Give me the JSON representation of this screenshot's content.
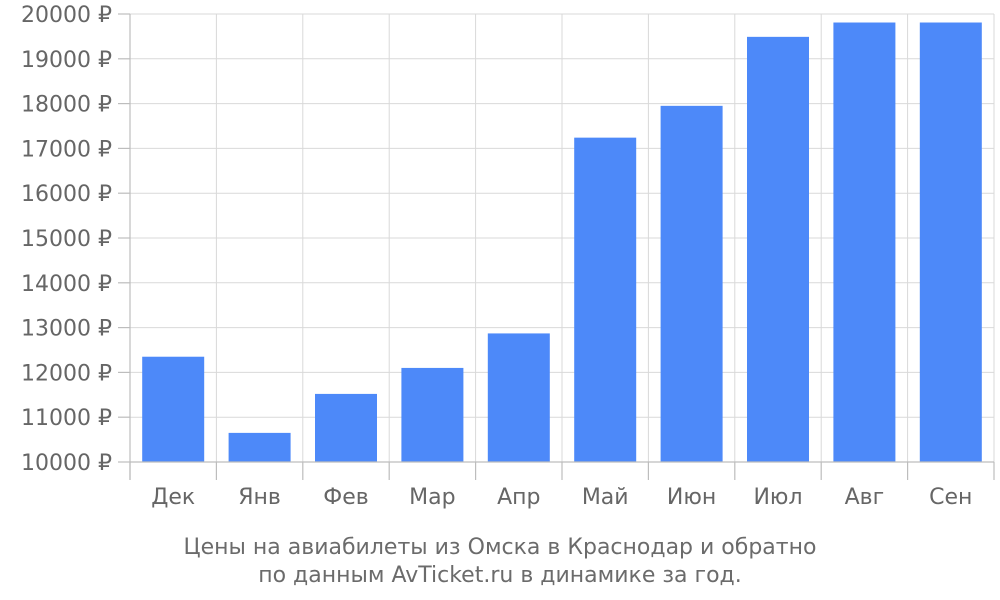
{
  "chart_data": {
    "type": "bar",
    "categories": [
      "Дек",
      "Янв",
      "Фев",
      "Мар",
      "Апр",
      "Май",
      "Июн",
      "Июл",
      "Авг",
      "Сен"
    ],
    "values": [
      12350,
      10650,
      11520,
      12100,
      12870,
      17240,
      17950,
      19490,
      19810,
      19810
    ],
    "ylim": [
      10000,
      20000
    ],
    "yticks": [
      10000,
      11000,
      12000,
      13000,
      14000,
      15000,
      16000,
      17000,
      18000,
      19000,
      20000
    ],
    "ytick_labels": [
      "10000 ₽",
      "11000 ₽",
      "12000 ₽",
      "13000 ₽",
      "14000 ₽",
      "15000 ₽",
      "16000 ₽",
      "17000 ₽",
      "18000 ₽",
      "19000 ₽",
      "20000 ₽"
    ],
    "grid": true,
    "bar_color": "#4d89f9",
    "title": "",
    "xlabel": "",
    "ylabel": "",
    "caption_lines": [
      "Цены на авиабилеты из Омска в Краснодар и обратно",
      "по данным AvTicket.ru в динамике за год."
    ]
  }
}
